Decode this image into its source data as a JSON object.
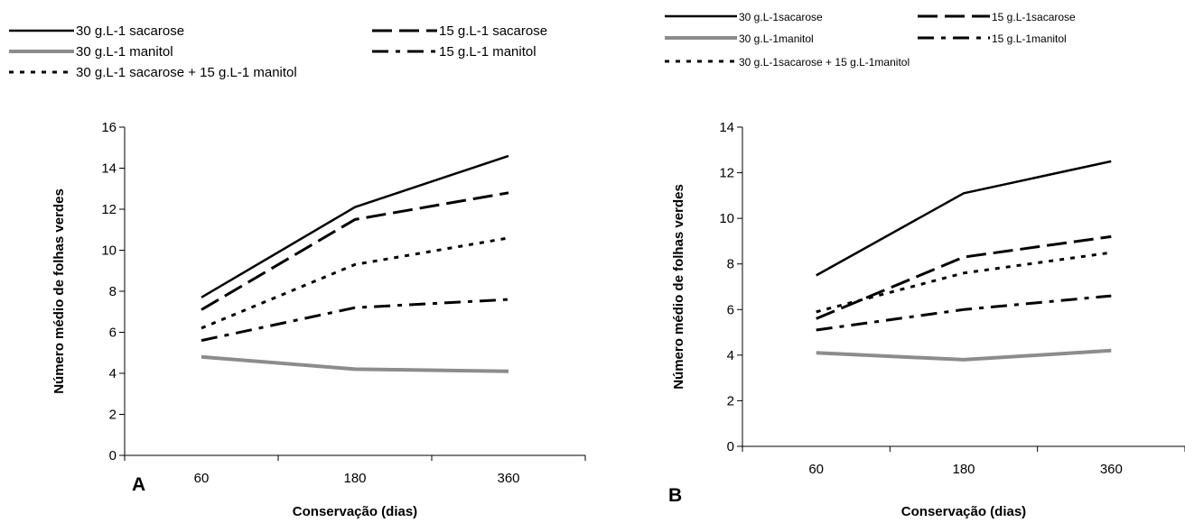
{
  "chart_data": [
    {
      "panel_label": "A",
      "type": "line",
      "x": [
        "60",
        "180",
        "360"
      ],
      "xlabel": "Conservação (dias)",
      "ylabel": "Número médio de folhas verdes",
      "ylim": [
        0,
        16
      ],
      "yticks": [
        "0",
        "2",
        "4",
        "6",
        "8",
        "10",
        "12",
        "14",
        "16"
      ],
      "grid": false,
      "legend_position": "top",
      "series": [
        {
          "name": "30 g.L-1 sacarose",
          "style": "solid",
          "color": "#000000",
          "values": [
            7.7,
            12.1,
            14.6
          ]
        },
        {
          "name": "15 g.L-1 sacarose",
          "style": "long-dash",
          "color": "#000000",
          "values": [
            7.1,
            11.5,
            12.8
          ]
        },
        {
          "name": "30 g.L-1 manitol",
          "style": "solid-gray",
          "color": "#8c8c8c",
          "values": [
            4.8,
            4.2,
            4.1
          ]
        },
        {
          "name": "15 g.L-1 manitol",
          "style": "dash-dot",
          "color": "#000000",
          "values": [
            5.6,
            7.2,
            7.6
          ]
        },
        {
          "name": "30 g.L-1 sacarose + 15 g.L-1 manitol",
          "style": "dotted",
          "color": "#000000",
          "values": [
            6.2,
            9.3,
            10.6
          ]
        }
      ]
    },
    {
      "panel_label": "B",
      "type": "line",
      "x": [
        "60",
        "180",
        "360"
      ],
      "xlabel": "Conservação (dias)",
      "ylabel": "Número médio de folhas verdes",
      "ylim": [
        0,
        14
      ],
      "yticks": [
        "0",
        "2",
        "4",
        "6",
        "8",
        "10",
        "12",
        "14"
      ],
      "grid": false,
      "legend_position": "top",
      "series": [
        {
          "name": "30 g.L-1sacarose",
          "style": "solid",
          "color": "#000000",
          "values": [
            7.5,
            11.1,
            12.5
          ]
        },
        {
          "name": "15 g.L-1sacarose",
          "style": "long-dash",
          "color": "#000000",
          "values": [
            5.6,
            8.3,
            9.2
          ]
        },
        {
          "name": "30 g.L-1manitol",
          "style": "solid-gray",
          "color": "#8c8c8c",
          "values": [
            4.1,
            3.8,
            4.2
          ]
        },
        {
          "name": "15 g.L-1manitol",
          "style": "dash-dot",
          "color": "#000000",
          "values": [
            5.1,
            6.0,
            6.6
          ]
        },
        {
          "name": "30 g.L-1sacarose + 15 g.L-1manitol",
          "style": "dotted",
          "color": "#000000",
          "values": [
            5.9,
            7.6,
            8.5
          ]
        }
      ]
    }
  ]
}
